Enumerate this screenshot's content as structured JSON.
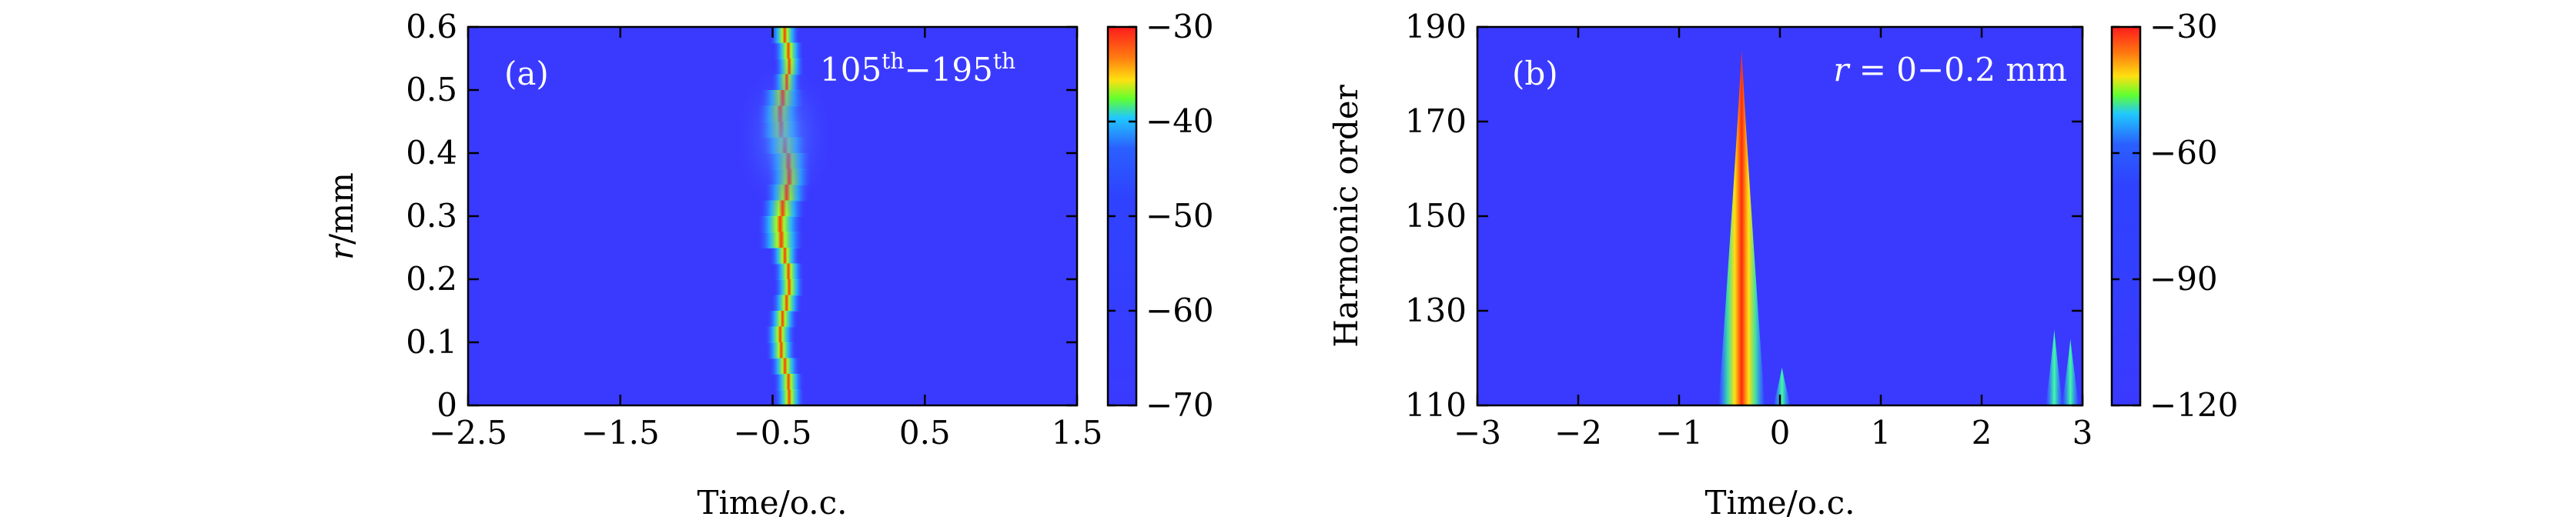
{
  "chart_data": [
    {
      "type": "heatmap",
      "panel_label": "(a)",
      "annotation": {
        "base1": "105",
        "sup1": "th",
        "sep": "−",
        "base2": "195",
        "sup2": "th"
      },
      "xlabel": "Time/o.c.",
      "ylabel": {
        "var": "r",
        "unit": "/mm"
      },
      "xlim": [
        -2.5,
        1.5
      ],
      "ylim": [
        0,
        0.6
      ],
      "xticks": [
        -2.5,
        -1.5,
        -0.5,
        0.5,
        1.5
      ],
      "xtick_labels": [
        "−2.5",
        "−1.5",
        "−0.5",
        "0.5",
        "1.5"
      ],
      "yticks": [
        0,
        0.1,
        0.2,
        0.3,
        0.4,
        0.5,
        0.6
      ],
      "ytick_labels": [
        "0",
        "0.1",
        "0.2",
        "0.3",
        "0.4",
        "0.5",
        "0.6"
      ],
      "colorbar": {
        "range": [
          -70,
          -30
        ],
        "ticks": [
          -30,
          -40,
          -50,
          -60,
          -70
        ],
        "tick_labels": [
          "−30",
          "−40",
          "−50",
          "−60",
          "−70"
        ]
      },
      "features": [
        {
          "kind": "ridge",
          "x_center": -0.42,
          "y_range": [
            0,
            0.6
          ],
          "peak_value": -30
        },
        {
          "kind": "halo",
          "x_range": [
            -0.75,
            -0.1
          ],
          "y_range": [
            0.3,
            0.55
          ],
          "value": -45
        }
      ]
    },
    {
      "type": "heatmap",
      "panel_label": "(b)",
      "annotation": {
        "var": "r",
        "text": " = 0−0.2 mm"
      },
      "xlabel": "Time/o.c.",
      "ylabel": "Harmonic order",
      "xlim": [
        -3,
        3
      ],
      "ylim": [
        110,
        190
      ],
      "xticks": [
        -3,
        -2,
        -1,
        0,
        1,
        2,
        3
      ],
      "xtick_labels": [
        "−3",
        "−2",
        "−1",
        "0",
        "1",
        "2",
        "3"
      ],
      "yticks": [
        110,
        130,
        150,
        170,
        190
      ],
      "ytick_labels": [
        "110",
        "130",
        "150",
        "170",
        "190"
      ],
      "colorbar": {
        "range": [
          -120,
          -30
        ],
        "ticks": [
          -30,
          -60,
          -90,
          -120
        ],
        "tick_labels": [
          "−30",
          "−60",
          "−90",
          "−120"
        ]
      },
      "features": [
        {
          "kind": "spike",
          "x_center": -0.38,
          "y_peak": 185,
          "peak_value": -30
        },
        {
          "kind": "spike",
          "x_center": 0.02,
          "y_peak": 118,
          "peak_value": -55
        },
        {
          "kind": "spike",
          "x_center": 2.72,
          "y_peak": 126,
          "peak_value": -50
        },
        {
          "kind": "spike",
          "x_center": 2.88,
          "y_peak": 124,
          "peak_value": -50
        }
      ]
    }
  ]
}
